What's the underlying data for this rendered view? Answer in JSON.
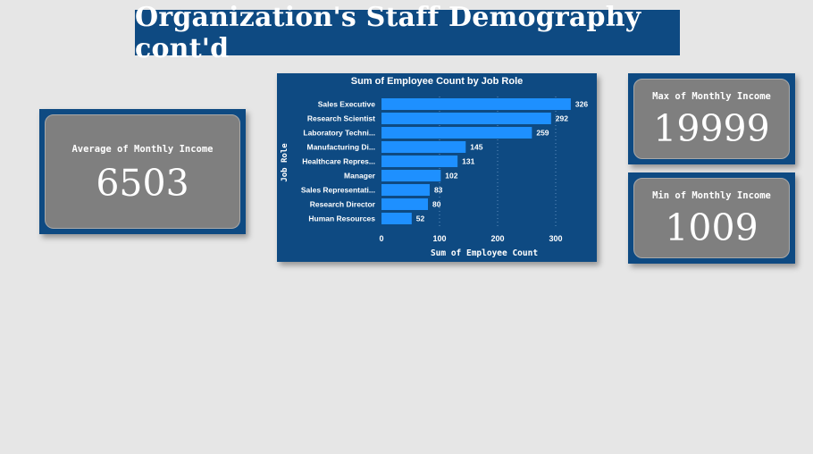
{
  "header": {
    "title": "Organization's Staff Demography cont'd"
  },
  "cards": {
    "avg": {
      "label": "Average of Monthly Income",
      "value": "6503"
    },
    "max": {
      "label": "Max of Monthly Income",
      "value": "19999"
    },
    "min": {
      "label": "Min of Monthly Income",
      "value": "1009"
    }
  },
  "colors": {
    "banner": "#0e4a82",
    "card": "#7f7f7f",
    "bar": "#1e90ff",
    "background": "#e6e6e6"
  },
  "chart_data": {
    "type": "bar",
    "orientation": "horizontal",
    "title": "Sum of Employee Count by Job Role",
    "xlabel": "Sum of Employee Count",
    "ylabel": "Job Role",
    "categories": [
      "Sales Executive",
      "Research Scientist",
      "Laboratory Techni...",
      "Manufacturing Di...",
      "Healthcare Repres...",
      "Manager",
      "Sales Representati...",
      "Research Director",
      "Human Resources"
    ],
    "values": [
      326,
      292,
      259,
      145,
      131,
      102,
      83,
      80,
      52
    ],
    "xticks": [
      0,
      100,
      200,
      300
    ],
    "xlim": [
      0,
      335
    ],
    "grid": true,
    "legend": "none"
  }
}
